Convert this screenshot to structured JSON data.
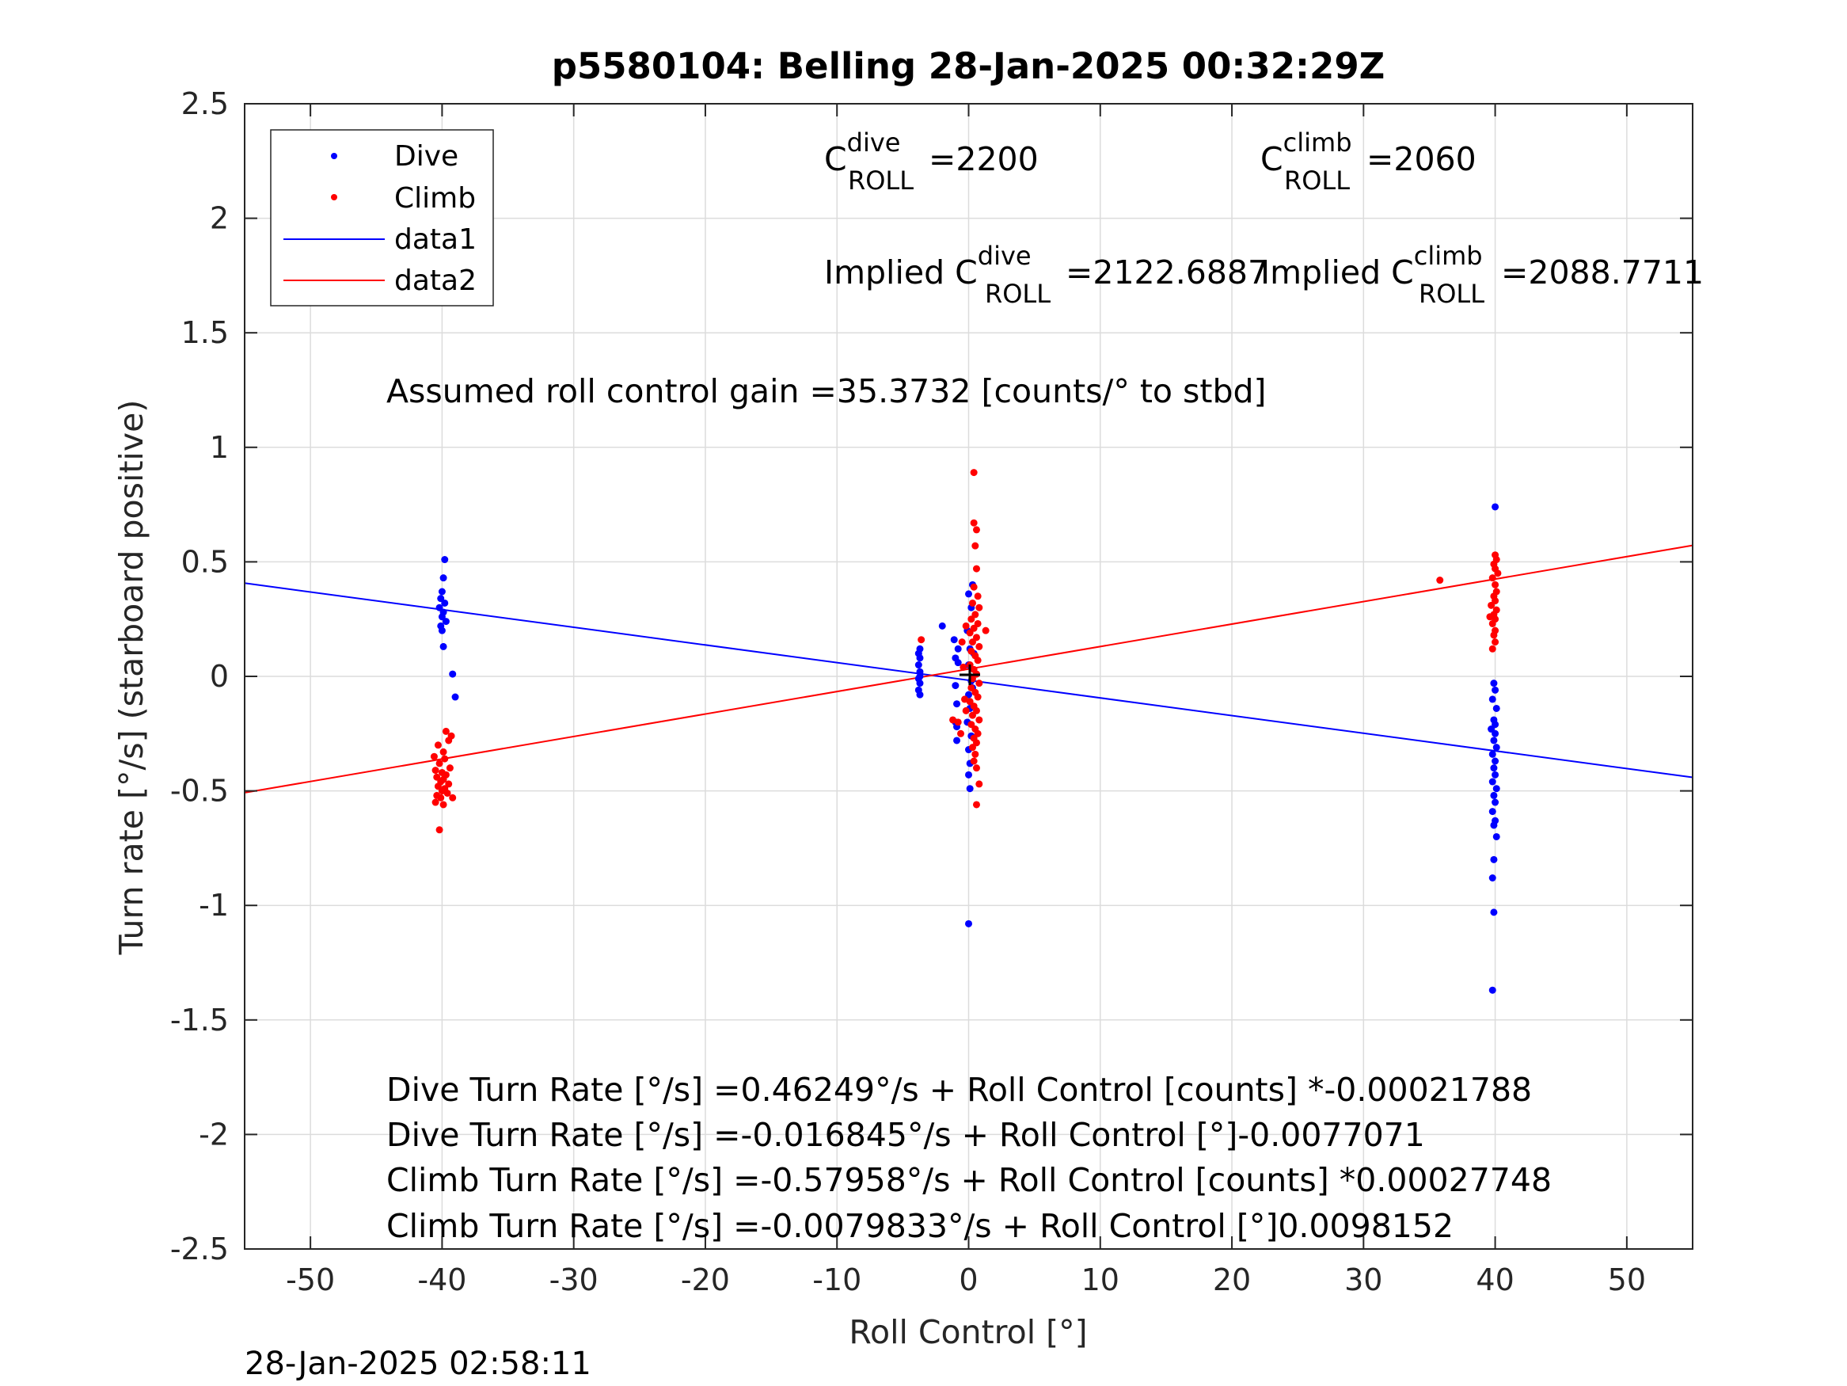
{
  "chart_data": {
    "type": "scatter",
    "title": "p5580104: Belling 28-Jan-2025 00:32:29Z",
    "xlabel": "Roll Control [°]",
    "ylabel": "Turn rate [°/s] (starboard positive)",
    "xlim": [
      -55,
      55
    ],
    "ylim": [
      -2.5,
      2.5
    ],
    "grid": true,
    "legend_position": "top-left",
    "x_ticks": [
      -50,
      -40,
      -30,
      -20,
      -10,
      0,
      10,
      20,
      30,
      40,
      50
    ],
    "y_ticks": [
      2.5,
      2,
      1.5,
      1,
      0.5,
      0,
      -0.5,
      -1,
      -1.5,
      -2,
      -2.5
    ],
    "x_tick_labels": [
      "-50",
      "-40",
      "-30",
      "-20",
      "-10",
      "0",
      "10",
      "20",
      "30",
      "40",
      "50"
    ],
    "y_tick_labels": [
      "2.5",
      "2",
      "1.5",
      "1",
      "0.5",
      "0",
      "-0.5",
      "-1",
      "-1.5",
      "-2",
      "-2.5"
    ],
    "series": [
      {
        "name": "Dive",
        "kind": "points",
        "color": "#0000ff",
        "points": [
          [
            -39.8,
            0.51
          ],
          [
            -39.9,
            0.43
          ],
          [
            -40.0,
            0.37
          ],
          [
            -40.1,
            0.34
          ],
          [
            -39.8,
            0.32
          ],
          [
            -40.2,
            0.3
          ],
          [
            -39.9,
            0.28
          ],
          [
            -40.0,
            0.26
          ],
          [
            -39.7,
            0.24
          ],
          [
            -40.1,
            0.22
          ],
          [
            -40.0,
            0.2
          ],
          [
            -39.9,
            0.13
          ],
          [
            -39.2,
            0.01
          ],
          [
            -39.0,
            -0.09
          ],
          [
            40.0,
            0.74
          ],
          [
            39.9,
            -0.03
          ],
          [
            40.0,
            -0.06
          ],
          [
            39.8,
            -0.1
          ],
          [
            40.1,
            -0.14
          ],
          [
            39.9,
            -0.19
          ],
          [
            40.0,
            -0.21
          ],
          [
            39.7,
            -0.23
          ],
          [
            40.0,
            -0.25
          ],
          [
            39.9,
            -0.28
          ],
          [
            40.1,
            -0.31
          ],
          [
            39.8,
            -0.34
          ],
          [
            40.0,
            -0.37
          ],
          [
            39.9,
            -0.4
          ],
          [
            40.0,
            -0.43
          ],
          [
            39.8,
            -0.46
          ],
          [
            40.1,
            -0.49
          ],
          [
            39.9,
            -0.52
          ],
          [
            40.0,
            -0.55
          ],
          [
            39.8,
            -0.59
          ],
          [
            40.0,
            -0.63
          ],
          [
            39.9,
            -0.65
          ],
          [
            40.1,
            -0.7
          ],
          [
            39.9,
            -0.8
          ],
          [
            39.8,
            -0.88
          ],
          [
            39.9,
            -1.03
          ],
          [
            39.8,
            -1.37
          ],
          [
            -3.7,
            0.12
          ],
          [
            -3.7,
            0.08
          ],
          [
            -3.8,
            0.05
          ],
          [
            -3.7,
            0.02
          ],
          [
            -3.8,
            -0.01
          ],
          [
            -3.7,
            -0.03
          ],
          [
            -3.8,
            -0.06
          ],
          [
            -3.7,
            -0.08
          ],
          [
            -3.7,
            0.0
          ],
          [
            -3.8,
            0.1
          ],
          [
            -2.0,
            0.22
          ],
          [
            -1.0,
            0.08
          ],
          [
            -1.0,
            -0.2
          ],
          [
            -0.9,
            -0.28
          ],
          [
            -1.1,
            0.16
          ],
          [
            -0.8,
            0.06
          ],
          [
            -0.9,
            -0.12
          ],
          [
            -1.0,
            -0.04
          ],
          [
            -0.8,
            0.12
          ],
          [
            -0.9,
            -0.22
          ],
          [
            0.0,
            0.36
          ],
          [
            0.3,
            0.4
          ],
          [
            0.2,
            0.3
          ],
          [
            -0.1,
            0.2
          ],
          [
            0.1,
            0.12
          ],
          [
            0.0,
            0.05
          ],
          [
            0.2,
            -0.02
          ],
          [
            0.0,
            -0.08
          ],
          [
            0.1,
            -0.14
          ],
          [
            -0.1,
            -0.2
          ],
          [
            0.2,
            -0.26
          ],
          [
            0.0,
            -0.32
          ],
          [
            0.1,
            -0.38
          ],
          [
            0.0,
            -0.43
          ],
          [
            0.1,
            -0.49
          ],
          [
            0.0,
            -1.08
          ],
          [
            0.4,
            0.1
          ],
          [
            0.3,
            -0.05
          ]
        ]
      },
      {
        "name": "Climb",
        "kind": "points",
        "color": "#ff0000",
        "points": [
          [
            -39.7,
            -0.24
          ],
          [
            -39.3,
            -0.26
          ],
          [
            -39.5,
            -0.28
          ],
          [
            -40.3,
            -0.3
          ],
          [
            -39.9,
            -0.33
          ],
          [
            -40.6,
            -0.35
          ],
          [
            -39.8,
            -0.36
          ],
          [
            -40.2,
            -0.38
          ],
          [
            -39.4,
            -0.4
          ],
          [
            -40.5,
            -0.41
          ],
          [
            -40.0,
            -0.42
          ],
          [
            -39.7,
            -0.43
          ],
          [
            -40.4,
            -0.44
          ],
          [
            -39.9,
            -0.45
          ],
          [
            -40.1,
            -0.46
          ],
          [
            -39.5,
            -0.47
          ],
          [
            -40.3,
            -0.48
          ],
          [
            -39.8,
            -0.49
          ],
          [
            -40.0,
            -0.5
          ],
          [
            -39.6,
            -0.51
          ],
          [
            -40.4,
            -0.52
          ],
          [
            -40.1,
            -0.53
          ],
          [
            -39.2,
            -0.53
          ],
          [
            -40.5,
            -0.55
          ],
          [
            -39.9,
            -0.56
          ],
          [
            -40.2,
            -0.67
          ],
          [
            35.8,
            0.42
          ],
          [
            40.0,
            0.53
          ],
          [
            40.1,
            0.51
          ],
          [
            39.9,
            0.49
          ],
          [
            40.0,
            0.47
          ],
          [
            40.2,
            0.45
          ],
          [
            39.8,
            0.43
          ],
          [
            40.0,
            0.4
          ],
          [
            40.1,
            0.37
          ],
          [
            39.9,
            0.35
          ],
          [
            40.0,
            0.33
          ],
          [
            39.7,
            0.31
          ],
          [
            40.1,
            0.29
          ],
          [
            39.9,
            0.27
          ],
          [
            40.0,
            0.25
          ],
          [
            39.8,
            0.23
          ],
          [
            40.0,
            0.2
          ],
          [
            39.9,
            0.18
          ],
          [
            40.0,
            0.15
          ],
          [
            39.8,
            0.12
          ],
          [
            39.6,
            0.26
          ],
          [
            -3.6,
            0.16
          ],
          [
            1.3,
            0.2
          ],
          [
            -1.2,
            -0.19
          ],
          [
            -0.8,
            -0.2
          ],
          [
            -0.5,
            0.15
          ],
          [
            -0.6,
            -0.25
          ],
          [
            0.4,
            0.89
          ],
          [
            0.4,
            0.67
          ],
          [
            0.6,
            0.64
          ],
          [
            0.5,
            0.57
          ],
          [
            0.6,
            0.47
          ],
          [
            0.4,
            0.39
          ],
          [
            0.7,
            0.35
          ],
          [
            0.3,
            0.32
          ],
          [
            0.8,
            0.3
          ],
          [
            0.5,
            0.27
          ],
          [
            0.2,
            0.25
          ],
          [
            0.7,
            0.23
          ],
          [
            0.4,
            0.21
          ],
          [
            0.1,
            0.19
          ],
          [
            0.6,
            0.17
          ],
          [
            0.3,
            0.15
          ],
          [
            0.8,
            0.13
          ],
          [
            0.2,
            0.11
          ],
          [
            0.5,
            0.09
          ],
          [
            0.7,
            0.07
          ],
          [
            0.1,
            0.05
          ],
          [
            0.4,
            0.03
          ],
          [
            0.6,
            0.01
          ],
          [
            0.3,
            -0.01
          ],
          [
            0.8,
            -0.03
          ],
          [
            0.2,
            -0.05
          ],
          [
            0.5,
            -0.07
          ],
          [
            0.7,
            -0.09
          ],
          [
            0.1,
            -0.11
          ],
          [
            0.4,
            -0.13
          ],
          [
            0.6,
            -0.15
          ],
          [
            0.3,
            -0.17
          ],
          [
            0.8,
            -0.19
          ],
          [
            0.2,
            -0.21
          ],
          [
            0.5,
            -0.23
          ],
          [
            0.7,
            -0.25
          ],
          [
            0.4,
            -0.27
          ],
          [
            0.6,
            -0.29
          ],
          [
            0.3,
            -0.31
          ],
          [
            0.5,
            -0.34
          ],
          [
            0.4,
            -0.37
          ],
          [
            0.6,
            -0.4
          ],
          [
            0.8,
            -0.47
          ],
          [
            0.6,
            -0.56
          ],
          [
            -0.2,
            0.22
          ],
          [
            -0.3,
            -0.1
          ],
          [
            -0.4,
            0.04
          ],
          [
            -0.2,
            -0.15
          ]
        ]
      },
      {
        "name": "data1",
        "kind": "line",
        "color": "#0000ff",
        "x": [
          -55,
          55
        ],
        "y": [
          0.407,
          -0.441
        ]
      },
      {
        "name": "data2",
        "kind": "line",
        "color": "#ff0000",
        "x": [
          -55,
          55
        ],
        "y": [
          -0.508,
          0.572
        ]
      }
    ],
    "annotations": {
      "c_dive": {
        "prefix": "C",
        "sup": "dive",
        "sub": "ROLL",
        "value": "=2200"
      },
      "c_climb": {
        "prefix": "C",
        "sup": "climb",
        "sub": "ROLL",
        "value": "=2060"
      },
      "implied_dive": {
        "prefix": "Implied C",
        "sup": "dive",
        "sub": "ROLL",
        "value": "=2122.6887"
      },
      "implied_climb": {
        "prefix": "Implied C",
        "sup": "climb",
        "sub": "ROLL",
        "value": "=2088.7711"
      },
      "gain": "Assumed roll control gain =35.3732 [counts/° to stbd]",
      "equations": [
        "Dive Turn Rate [°/s] =0.46249°/s + Roll Control [counts] *-0.00021788",
        "Dive Turn Rate [°/s] =-0.016845°/s + Roll Control [°]-0.0077071",
        "Climb Turn Rate [°/s] =-0.57958°/s + Roll Control [counts] *0.00027748",
        "Climb Turn Rate [°/s] =-0.0079833°/s + Roll Control [°]0.0098152"
      ]
    },
    "timestamp": "28-Jan-2025 02:58:11"
  }
}
